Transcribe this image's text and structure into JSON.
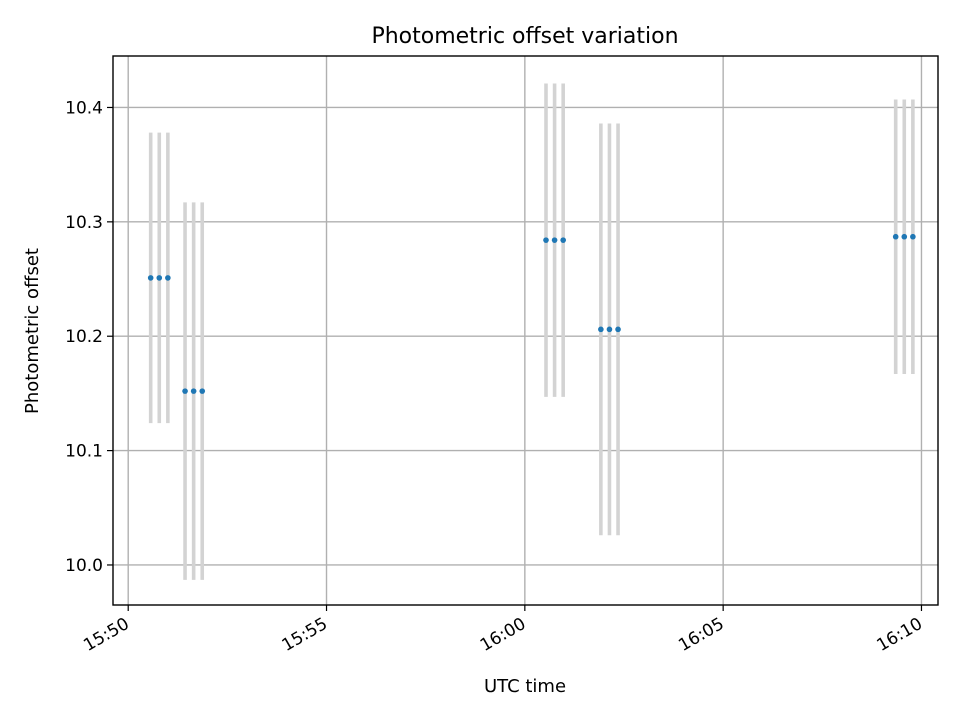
{
  "chart_data": {
    "type": "scatter",
    "title": "Photometric offset variation",
    "xlabel": "UTC time",
    "ylabel": "Photometric offset",
    "x_axis_kind": "time",
    "xlim": [
      "15:49:37",
      "16:10:25"
    ],
    "ylim": [
      9.965,
      10.445
    ],
    "x_ticks": [
      "15:50",
      "15:55",
      "16:00",
      "16:05",
      "16:10"
    ],
    "y_ticks": [
      "10.0",
      "10.1",
      "10.2",
      "10.3",
      "10.4"
    ],
    "grid": true,
    "marker_color": "#1f77b4",
    "errorbar_color": "#d3d3d3",
    "groups": [
      {
        "x": [
          "15:50:34",
          "15:50:47",
          "15:51:00"
        ],
        "y": 10.251,
        "yerr": 0.127
      },
      {
        "x": [
          "15:51:26",
          "15:51:39",
          "15:51:52"
        ],
        "y": 10.152,
        "yerr": 0.165
      },
      {
        "x": [
          "16:00:32",
          "16:00:45",
          "16:00:58"
        ],
        "y": 10.284,
        "yerr": 0.137
      },
      {
        "x": [
          "16:01:55",
          "16:02:08",
          "16:02:21"
        ],
        "y": 10.206,
        "yerr": 0.18
      },
      {
        "x": [
          "16:09:21",
          "16:09:34",
          "16:09:47"
        ],
        "y": 10.287,
        "yerr": 0.12
      }
    ]
  }
}
